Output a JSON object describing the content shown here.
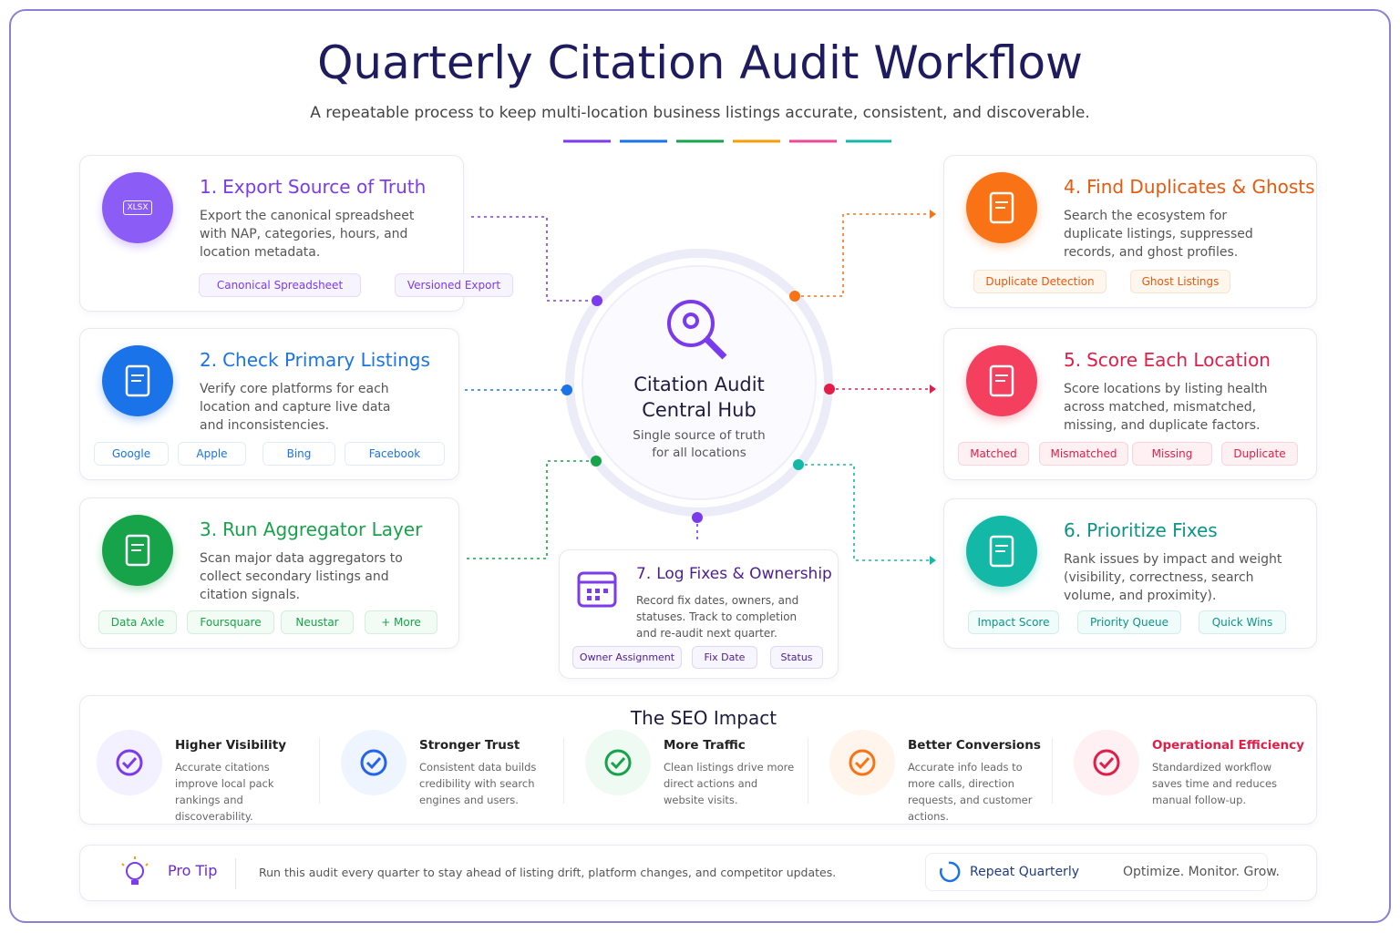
{
  "header": {
    "title": "Quarterly Citation Audit Workflow",
    "subtitle": "A repeatable process to keep multi-location business listings accurate, consistent, and discoverable."
  },
  "hub": {
    "title": "Citation Audit Central Hub",
    "subtitle": "Single source of truth for all locations"
  },
  "steps": [
    {
      "number": "1.",
      "title": "Export Source of Truth",
      "icon_label": "XLSX",
      "description": "Export the canonical spreadsheet with NAP, categories, hours, and location metadata.",
      "tags": [
        "Canonical Spreadsheet",
        "Versioned Export"
      ]
    },
    {
      "number": "2.",
      "title": "Check Primary Listings",
      "description": "Verify core platforms for each location and capture live data and inconsistencies.",
      "tags": [
        "Google",
        "Apple",
        "Bing",
        "Facebook"
      ]
    },
    {
      "number": "3.",
      "title": "Run Aggregator Layer",
      "description": "Scan major data aggregators to collect secondary listings and citation signals.",
      "tags": [
        "Data Axle",
        "Foursquare",
        "Neustar",
        "+ More"
      ]
    },
    {
      "number": "4.",
      "title": "Find Duplicates & Ghosts",
      "description": "Search the ecosystem for duplicate listings, suppressed records, and ghost profiles.",
      "tags": [
        "Duplicate Detection",
        "Ghost Listings"
      ]
    },
    {
      "number": "5.",
      "title": "Score Each Location",
      "description": "Score locations by listing health across matched, mismatched, missing, and duplicate factors.",
      "tags": [
        "Matched",
        "Mismatched",
        "Missing",
        "Duplicate"
      ]
    },
    {
      "number": "6.",
      "title": "Prioritize Fixes",
      "description": "Rank issues by impact and weight (visibility, correctness, search volume, and proximity).",
      "tags": [
        "Impact Score",
        "Priority Queue",
        "Quick Wins"
      ]
    },
    {
      "number": "7.",
      "title": "Log Fixes & Ownership",
      "description": "Record fix dates, owners, and statuses. Track to completion and re-audit next quarter.",
      "tags": [
        "Owner Assignment",
        "Fix Date",
        "Status"
      ]
    }
  ],
  "impact": {
    "title": "The SEO Impact",
    "items": [
      {
        "title": "Higher Visibility",
        "description": "Accurate citations improve local pack rankings and discoverability."
      },
      {
        "title": "Stronger Trust",
        "description": "Consistent data builds credibility with search engines and users."
      },
      {
        "title": "More Traffic",
        "description": "Clean listings drive more direct actions and website visits."
      },
      {
        "title": "Better Conversions",
        "description": "Accurate info leads to more calls, direction requests, and customer actions."
      },
      {
        "title": "Operational Efficiency",
        "description": "Standardized workflow saves time and reduces manual follow-up."
      }
    ]
  },
  "tip": {
    "label": "Pro Tip",
    "text": "Run this audit every quarter to stay ahead of listing drift, platform changes, and competitor updates.",
    "badge": "Repeat Quarterly",
    "tagline": "Optimize. Monitor. Grow."
  }
}
